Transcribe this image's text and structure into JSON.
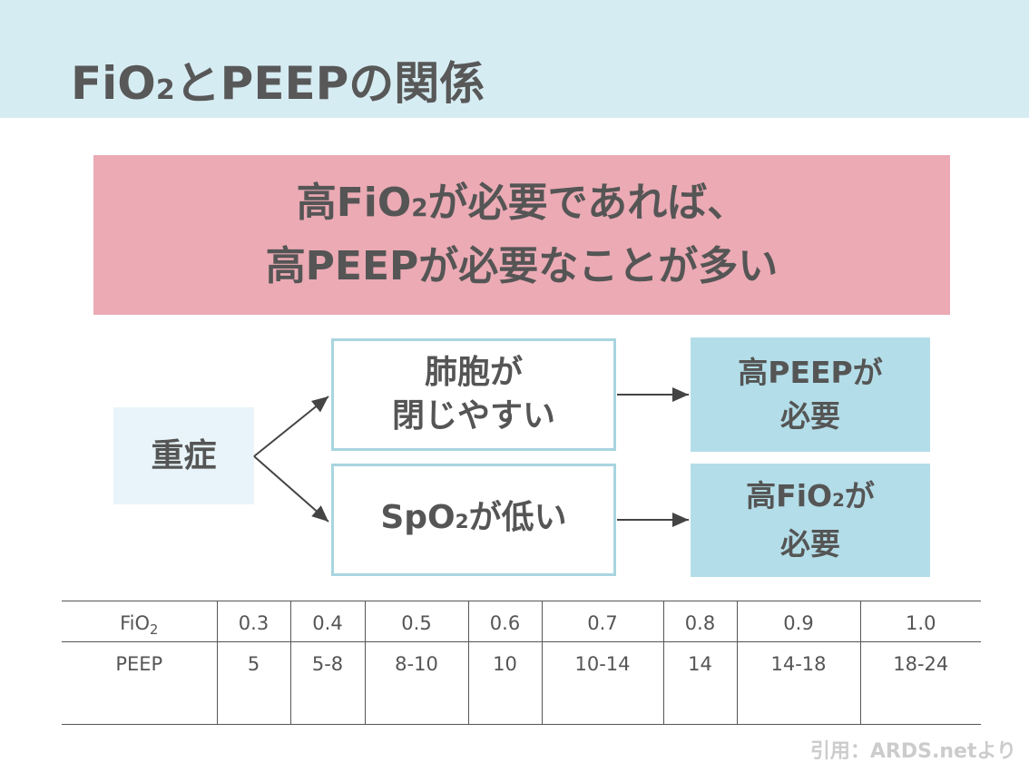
{
  "title": {
    "pre": "FiO",
    "sub": "2",
    "post": "とPEEPの関係"
  },
  "banner": {
    "line1_pre": "高FiO",
    "line1_sub": "2",
    "line1_post": "が必要であれば、",
    "line2": "高PEEPが必要なことが多い"
  },
  "flow": {
    "start": "重症",
    "mid_top_line1": "肺胞が",
    "mid_top_line2": "閉じやすい",
    "mid_bottom_pre": "SpO",
    "mid_bottom_sub": "2",
    "mid_bottom_post": "が低い",
    "result_top_line1": "高PEEPが",
    "result_top_line2": "必要",
    "result_bottom_line1_pre": "高FiO",
    "result_bottom_line1_sub": "2",
    "result_bottom_line1_post": "が",
    "result_bottom_line2": "必要"
  },
  "table": {
    "row1_label": "FiO",
    "row1_label_sub": "2",
    "fio2": [
      "0.3",
      "0.4",
      "0.5",
      "0.6",
      "0.7",
      "0.8",
      "0.9",
      "1.0"
    ],
    "row2_label": "PEEP",
    "peep": [
      "5",
      "5-8",
      "8-10",
      "10",
      "10-14",
      "14",
      "14-18",
      "18-24"
    ]
  },
  "citation": "引用：ARDS.netより",
  "colors": {
    "header_bg": "#d6ecf3",
    "banner_bg": "#ebaab4",
    "box_border": "#a8d5e0",
    "result_bg": "#b3dde8",
    "start_bg": "#e8f4f9"
  }
}
